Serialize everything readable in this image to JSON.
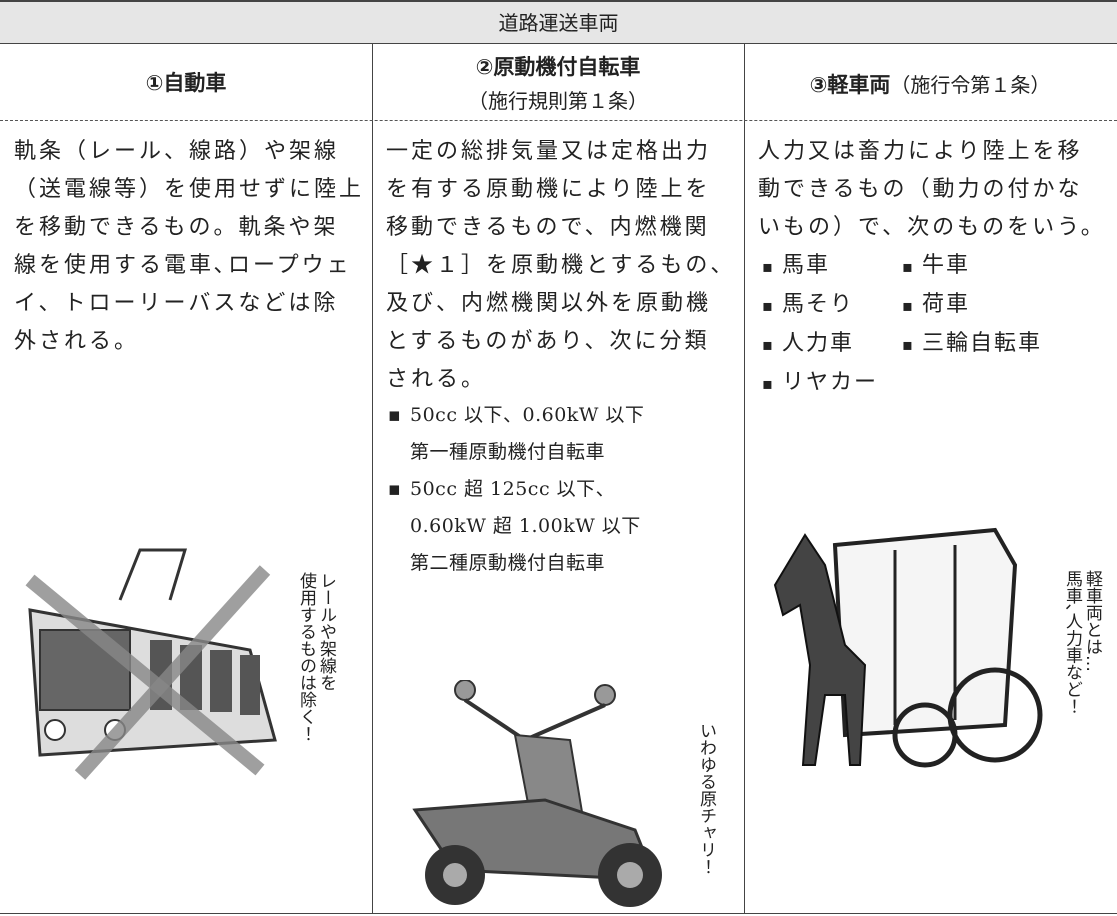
{
  "table": {
    "title": "道路運送車両",
    "columns": [
      {
        "header": "①自動車",
        "body": [
          "軌条（レール、線路）や架線",
          "（送電線等）を使用せずに陸上",
          "を移動できるもの。軌条や架",
          "線を使用する電車､ロープウェ",
          "イ、トローリーバスなどは除",
          "外される。"
        ],
        "note": [
          "レールや架線を",
          "使用するものは除く！"
        ]
      },
      {
        "header": "②原動機付自転車",
        "header_sub": "（施行規則第１条）",
        "body": [
          "一定の総排気量又は定格出力",
          "を有する原動機により陸上を",
          "移動できるもので、内燃機関",
          "［★１］を原動機とするもの、",
          "及び、内燃機関以外を原動機",
          "とするものがあり、次に分類",
          "される。"
        ],
        "bullets": [
          [
            "50cc 以下、0.60kW 以下",
            "第一種原動機付自転車"
          ],
          [
            "50cc 超 125cc 以下、",
            "0.60kW 超 1.00kW 以下",
            "第二種原動機付自転車"
          ]
        ],
        "note": [
          "いわゆる原チャリ！"
        ]
      },
      {
        "header": "③軽車両",
        "header_sub": "（施行令第１条）",
        "body": [
          "人力又は畜力により陸上を移",
          "動できるもの（動力の付かな",
          "いもの）で、次のものをいう。"
        ],
        "items": [
          "馬車",
          "牛車",
          "馬そり",
          "荷車",
          "人力車",
          "三輪自転車",
          "リヤカー"
        ],
        "note": [
          "軽車両とは…",
          "馬車､人力車など！"
        ]
      }
    ]
  }
}
